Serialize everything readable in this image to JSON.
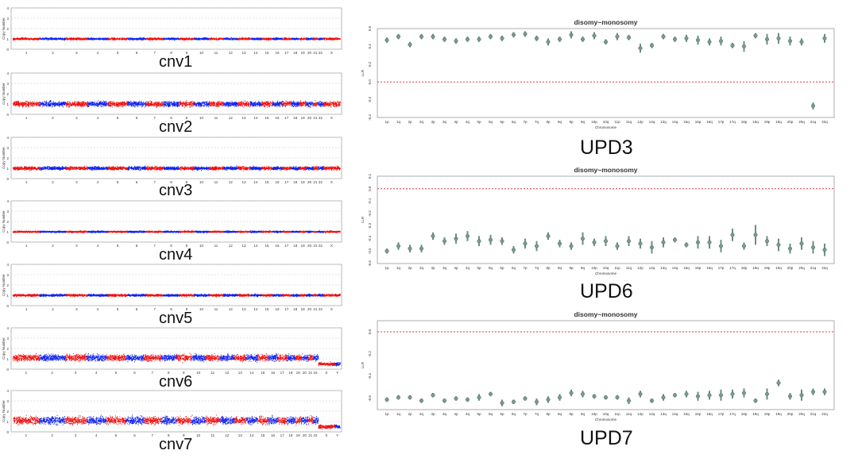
{
  "chart_data": [
    {
      "type": "scatter",
      "id": "cnv1",
      "caption": "cnv1",
      "ylabel": "Copy Number",
      "yticks": [
        "0",
        "1",
        "2",
        "3",
        "4"
      ],
      "ylim": [
        0,
        4
      ],
      "baseline": 1,
      "noise": 0.16,
      "chromosomes": [
        "1",
        "2",
        "3",
        "4",
        "5",
        "6",
        "7",
        "8",
        "9",
        "10",
        "11",
        "12",
        "13",
        "14",
        "15",
        "16",
        "17",
        "18",
        "19",
        "20",
        "21",
        "22",
        "X"
      ]
    },
    {
      "type": "scatter",
      "id": "cnv2",
      "caption": "cnv2",
      "ylabel": "Copy Number",
      "yticks": [
        "0",
        "1",
        "2",
        "3",
        "4"
      ],
      "ylim": [
        0,
        4
      ],
      "baseline": 1,
      "noise": 0.42,
      "chromosomes": [
        "1",
        "2",
        "3",
        "4",
        "5",
        "6",
        "7",
        "8",
        "9",
        "10",
        "11",
        "12",
        "13",
        "14",
        "15",
        "16",
        "17",
        "18",
        "19",
        "20",
        "21",
        "22",
        "X"
      ]
    },
    {
      "type": "scatter",
      "id": "cnv3",
      "caption": "cnv3",
      "ylabel": "Copy Number",
      "yticks": [
        "0",
        "1",
        "2",
        "3",
        "4"
      ],
      "ylim": [
        0,
        4
      ],
      "baseline": 1,
      "noise": 0.26,
      "chromosomes": [
        "1",
        "2",
        "3",
        "4",
        "5",
        "6",
        "7",
        "8",
        "9",
        "10",
        "11",
        "12",
        "13",
        "14",
        "15",
        "16",
        "17",
        "18",
        "19",
        "20",
        "21",
        "22",
        "X"
      ]
    },
    {
      "type": "scatter",
      "id": "cnv4",
      "caption": "cnv4",
      "ylabel": "Copy Number",
      "yticks": [
        "0",
        "1",
        "2",
        "3",
        "4"
      ],
      "ylim": [
        0,
        4
      ],
      "baseline": 1,
      "noise": 0.13,
      "chromosomes": [
        "1",
        "2",
        "3",
        "4",
        "5",
        "6",
        "7",
        "8",
        "9",
        "10",
        "11",
        "12",
        "13",
        "14",
        "15",
        "16",
        "17",
        "18",
        "19",
        "20",
        "21",
        "22",
        "X"
      ]
    },
    {
      "type": "scatter",
      "id": "cnv5",
      "caption": "cnv5",
      "ylabel": "Copy Number",
      "yticks": [
        "0",
        "1",
        "2",
        "3",
        "4"
      ],
      "ylim": [
        0,
        4
      ],
      "baseline": 1,
      "noise": 0.18,
      "chromosomes": [
        "1",
        "2",
        "3",
        "4",
        "5",
        "6",
        "7",
        "8",
        "9",
        "10",
        "11",
        "12",
        "13",
        "14",
        "15",
        "16",
        "17",
        "18",
        "19",
        "20",
        "21",
        "22",
        "X"
      ]
    },
    {
      "type": "scatter",
      "id": "cnv6",
      "caption": "cnv6",
      "ylabel": "Copy Number",
      "yticks": [
        "0",
        "1",
        "2",
        "3",
        "4"
      ],
      "ylim": [
        0,
        4
      ],
      "baseline": 1.1,
      "noise": 0.5,
      "chromosomes": [
        "1",
        "2",
        "3",
        "4",
        "5",
        "6",
        "7",
        "8",
        "9",
        "10",
        "11",
        "12",
        "13",
        "14",
        "15",
        "16",
        "17",
        "18",
        "19",
        "20",
        "21",
        "22",
        "X",
        "Y"
      ]
    },
    {
      "type": "scatter",
      "id": "cnv7",
      "caption": "cnv7",
      "ylabel": "Copy Number",
      "yticks": [
        "0",
        "1",
        "2",
        "3",
        "4"
      ],
      "ylim": [
        0,
        4
      ],
      "baseline": 1.1,
      "noise": 0.6,
      "chromosomes": [
        "1",
        "2",
        "3",
        "4",
        "5",
        "6",
        "7",
        "8",
        "9",
        "10",
        "11",
        "12",
        "13",
        "14",
        "15",
        "16",
        "17",
        "18",
        "19",
        "20",
        "21",
        "22",
        "X",
        "Y"
      ]
    },
    {
      "type": "scatter",
      "id": "upd3",
      "caption": "UPD3",
      "title": "disomy~monosomy",
      "xlabel": "Chromosome",
      "ylabel": "LLR",
      "ylim": [
        -0.4,
        0.6
      ],
      "yticks": [
        0.6,
        0.4,
        0.2,
        0.0,
        -0.2,
        -0.4
      ],
      "hline": 0.0,
      "categories": [
        "1p",
        "1q",
        "2p",
        "2q",
        "3p",
        "3q",
        "4p",
        "4q",
        "5p",
        "5q",
        "6p",
        "6q",
        "7p",
        "7q",
        "8p",
        "8q",
        "9p",
        "9q",
        "10p",
        "10q",
        "11p",
        "11q",
        "12p",
        "12q",
        "13q",
        "14q",
        "15q",
        "16p",
        "16q",
        "17p",
        "17q",
        "18p",
        "18q",
        "19p",
        "19q",
        "20p",
        "20q",
        "21q",
        "22q"
      ],
      "values": [
        0.47,
        0.51,
        0.42,
        0.51,
        0.51,
        0.48,
        0.46,
        0.48,
        0.48,
        0.51,
        0.49,
        0.53,
        0.54,
        0.49,
        0.45,
        0.48,
        0.53,
        0.48,
        0.52,
        0.45,
        0.51,
        0.5,
        0.38,
        0.41,
        0.51,
        0.48,
        0.49,
        0.47,
        0.45,
        0.46,
        0.41,
        0.4,
        0.52,
        0.48,
        0.49,
        0.46,
        0.45,
        -0.27,
        0.49
      ],
      "errors": [
        0.03,
        0.03,
        0.03,
        0.03,
        0.03,
        0.03,
        0.03,
        0.03,
        0.03,
        0.03,
        0.03,
        0.03,
        0.03,
        0.03,
        0.04,
        0.03,
        0.04,
        0.03,
        0.04,
        0.03,
        0.04,
        0.03,
        0.05,
        0.03,
        0.03,
        0.03,
        0.04,
        0.05,
        0.04,
        0.05,
        0.03,
        0.06,
        0.03,
        0.06,
        0.06,
        0.05,
        0.04,
        0.04,
        0.05
      ]
    },
    {
      "type": "scatter",
      "id": "upd6",
      "caption": "UPD6",
      "title": "disomy~monosomy",
      "xlabel": "Chromosome",
      "ylabel": "LLR",
      "ylim": [
        -0.6,
        0.1
      ],
      "yticks": [
        0.1,
        0.0,
        -0.1,
        -0.2,
        -0.3,
        -0.4,
        -0.5,
        -0.6
      ],
      "hline": 0.0,
      "categories": [
        "1p",
        "1q",
        "2p",
        "2q",
        "3p",
        "3q",
        "4p",
        "4q",
        "5p",
        "5q",
        "6p",
        "6q",
        "7p",
        "7q",
        "8p",
        "8q",
        "9p",
        "9q",
        "10p",
        "10q",
        "11p",
        "11q",
        "12p",
        "12q",
        "13q",
        "14q",
        "15q",
        "16p",
        "16q",
        "17p",
        "17q",
        "18p",
        "18q",
        "19p",
        "19q",
        "20p",
        "20q",
        "21q",
        "22q"
      ],
      "values": [
        -0.5,
        -0.46,
        -0.48,
        -0.48,
        -0.38,
        -0.42,
        -0.4,
        -0.38,
        -0.42,
        -0.41,
        -0.42,
        -0.49,
        -0.44,
        -0.46,
        -0.38,
        -0.44,
        -0.46,
        -0.4,
        -0.43,
        -0.42,
        -0.46,
        -0.42,
        -0.44,
        -0.47,
        -0.43,
        -0.41,
        -0.45,
        -0.43,
        -0.43,
        -0.46,
        -0.37,
        -0.46,
        -0.37,
        -0.42,
        -0.45,
        -0.48,
        -0.44,
        -0.47,
        -0.49
      ],
      "errors": [
        0.02,
        0.03,
        0.03,
        0.03,
        0.03,
        0.03,
        0.04,
        0.04,
        0.04,
        0.04,
        0.03,
        0.03,
        0.04,
        0.04,
        0.03,
        0.03,
        0.03,
        0.05,
        0.03,
        0.04,
        0.03,
        0.04,
        0.04,
        0.05,
        0.04,
        0.02,
        0.02,
        0.05,
        0.05,
        0.05,
        0.05,
        0.03,
        0.08,
        0.04,
        0.05,
        0.04,
        0.05,
        0.05,
        0.05
      ]
    },
    {
      "type": "scatter",
      "id": "upd7",
      "caption": "UPD7",
      "title": "disomy~monosomy",
      "xlabel": "Chromosome",
      "ylabel": "LLR",
      "ylim": [
        -0.7,
        0.1
      ],
      "yticks": [
        0.0,
        -0.2,
        -0.4,
        -0.6
      ],
      "hline": 0.0,
      "categories": [
        "1p",
        "1q",
        "2p",
        "2q",
        "3p",
        "3q",
        "4p",
        "4q",
        "5p",
        "5q",
        "6p",
        "6q",
        "7p",
        "7q",
        "8p",
        "8q",
        "9p",
        "9q",
        "10p",
        "10q",
        "11p",
        "11q",
        "12p",
        "12q",
        "13q",
        "14q",
        "15q",
        "16p",
        "16q",
        "17p",
        "17q",
        "18p",
        "18q",
        "19p",
        "19q",
        "20p",
        "20q",
        "21q",
        "22q"
      ],
      "values": [
        -0.61,
        -0.59,
        -0.59,
        -0.62,
        -0.57,
        -0.62,
        -0.6,
        -0.61,
        -0.59,
        -0.56,
        -0.64,
        -0.63,
        -0.6,
        -0.63,
        -0.61,
        -0.59,
        -0.55,
        -0.56,
        -0.58,
        -0.59,
        -0.59,
        -0.62,
        -0.56,
        -0.62,
        -0.59,
        -0.57,
        -0.56,
        -0.58,
        -0.57,
        -0.57,
        -0.56,
        -0.55,
        -0.62,
        -0.56,
        -0.46,
        -0.58,
        -0.57,
        -0.54,
        -0.54
      ],
      "errors": [
        0.02,
        0.02,
        0.02,
        0.02,
        0.02,
        0.02,
        0.02,
        0.02,
        0.03,
        0.02,
        0.03,
        0.02,
        0.02,
        0.03,
        0.03,
        0.03,
        0.03,
        0.03,
        0.02,
        0.02,
        0.02,
        0.03,
        0.03,
        0.02,
        0.03,
        0.02,
        0.03,
        0.04,
        0.04,
        0.05,
        0.04,
        0.04,
        0.02,
        0.05,
        0.03,
        0.03,
        0.05,
        0.03,
        0.03
      ]
    }
  ],
  "colors": {
    "red": "#ee1111",
    "blue": "#1122ee",
    "green": "#2a8a2a",
    "marker": "#6a8f84",
    "hline": "#e03a3a",
    "grid": "#c8c8c8",
    "axis": "#222222"
  }
}
